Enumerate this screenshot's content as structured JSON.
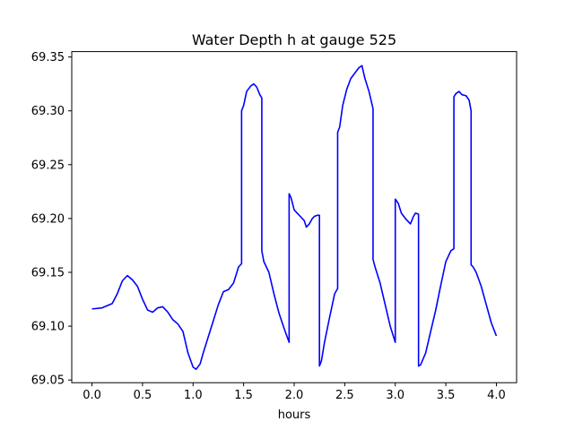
{
  "chart_data": {
    "type": "line",
    "title": "Water Depth h at gauge 525",
    "xlabel": "hours",
    "ylabel": "",
    "xlim": [
      -0.2,
      4.2
    ],
    "ylim": [
      69.0475,
      69.355
    ],
    "xticks": [
      0.0,
      0.5,
      1.0,
      1.5,
      2.0,
      2.5,
      3.0,
      3.5,
      4.0
    ],
    "xtick_labels": [
      "0.0",
      "0.5",
      "1.0",
      "1.5",
      "2.0",
      "2.5",
      "3.0",
      "3.5",
      "4.0"
    ],
    "yticks": [
      69.05,
      69.1,
      69.15,
      69.2,
      69.25,
      69.3,
      69.35
    ],
    "ytick_labels": [
      "69.05",
      "69.10",
      "69.15",
      "69.20",
      "69.25",
      "69.30",
      "69.35"
    ],
    "grid": false,
    "series": [
      {
        "color": "#0000ff",
        "x": [
          0.0,
          0.1,
          0.2,
          0.25,
          0.3,
          0.35,
          0.4,
          0.45,
          0.5,
          0.55,
          0.6,
          0.65,
          0.7,
          0.75,
          0.8,
          0.85,
          0.9,
          0.95,
          1.0,
          1.03,
          1.07,
          1.1,
          1.15,
          1.2,
          1.25,
          1.3,
          1.35,
          1.4,
          1.45,
          1.48,
          1.48,
          1.5,
          1.53,
          1.57,
          1.6,
          1.63,
          1.66,
          1.68,
          1.68,
          1.7,
          1.75,
          1.8,
          1.85,
          1.9,
          1.95,
          1.95,
          1.97,
          2.0,
          2.03,
          2.06,
          2.1,
          2.12,
          2.15,
          2.18,
          2.2,
          2.23,
          2.25,
          2.25,
          2.27,
          2.3,
          2.35,
          2.4,
          2.43,
          2.43,
          2.45,
          2.48,
          2.52,
          2.56,
          2.6,
          2.64,
          2.67,
          2.7,
          2.74,
          2.78,
          2.78,
          2.8,
          2.85,
          2.9,
          2.95,
          3.0,
          3.0,
          3.03,
          3.06,
          3.1,
          3.15,
          3.18,
          3.2,
          3.23,
          3.23,
          3.25,
          3.3,
          3.35,
          3.4,
          3.45,
          3.5,
          3.55,
          3.58,
          3.58,
          3.6,
          3.63,
          3.66,
          3.7,
          3.73,
          3.75,
          3.75,
          3.77,
          3.8,
          3.85,
          3.9,
          3.95,
          4.0
        ],
        "y": [
          69.116,
          69.117,
          69.121,
          69.13,
          69.142,
          69.147,
          69.143,
          69.137,
          69.125,
          69.115,
          69.113,
          69.117,
          69.118,
          69.113,
          69.106,
          69.102,
          69.095,
          69.075,
          69.062,
          69.06,
          69.065,
          69.075,
          69.09,
          69.105,
          69.12,
          69.132,
          69.134,
          69.14,
          69.155,
          69.158,
          69.3,
          69.305,
          69.318,
          69.323,
          69.325,
          69.322,
          69.315,
          69.312,
          69.17,
          69.16,
          69.15,
          69.13,
          69.112,
          69.098,
          69.085,
          69.223,
          69.219,
          69.208,
          69.205,
          69.202,
          69.198,
          69.192,
          69.195,
          69.2,
          69.202,
          69.203,
          69.203,
          69.063,
          69.068,
          69.085,
          69.108,
          69.13,
          69.135,
          69.28,
          69.285,
          69.305,
          69.32,
          69.33,
          69.335,
          69.34,
          69.342,
          69.33,
          69.318,
          69.302,
          69.162,
          69.155,
          69.14,
          69.12,
          69.1,
          69.085,
          69.218,
          69.214,
          69.205,
          69.2,
          69.195,
          69.202,
          69.205,
          69.204,
          69.063,
          69.064,
          69.075,
          69.095,
          69.115,
          69.138,
          69.16,
          69.17,
          69.172,
          69.313,
          69.316,
          69.318,
          69.315,
          69.314,
          69.31,
          69.3,
          69.157,
          69.155,
          69.15,
          69.137,
          69.12,
          69.103,
          69.091
        ]
      }
    ]
  }
}
